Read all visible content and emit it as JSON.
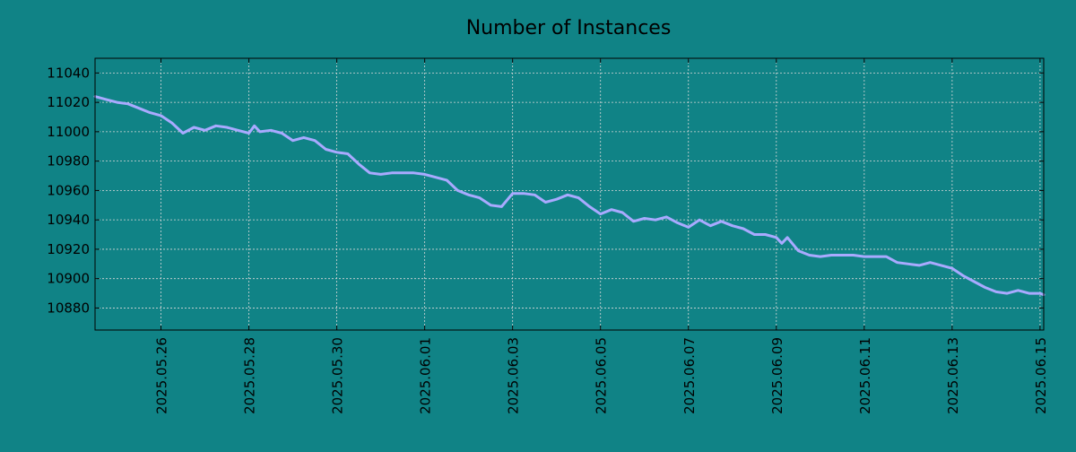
{
  "chart_data": {
    "type": "line",
    "title": "Number of Instances",
    "xlabel": "",
    "ylabel": "",
    "x_type": "date",
    "xlim": [
      "2025-05-24T12:00",
      "2025-06-15T02:00"
    ],
    "ylim": [
      10865,
      11050
    ],
    "x_ticks": [
      "2025.05.26",
      "2025.05.28",
      "2025.05.30",
      "2025.06.01",
      "2025.06.03",
      "2025.06.05",
      "2025.06.07",
      "2025.06.09",
      "2025.06.11",
      "2025.06.13",
      "2025.06.15"
    ],
    "y_ticks": [
      10880,
      10900,
      10920,
      10940,
      10960,
      10980,
      11000,
      11020,
      11040
    ],
    "grid": true,
    "legend": "none",
    "colors": {
      "background": "#108386",
      "line": "#a9aaff",
      "grid": "#d8d8d8",
      "axis": "#000000"
    },
    "series": [
      {
        "x": [
          "2025-05-24T12:00",
          "2025-05-24T18:00",
          "2025-05-25T00:00",
          "2025-05-25T06:00",
          "2025-05-25T12:00",
          "2025-05-25T18:00",
          "2025-05-26T00:00",
          "2025-05-26T06:00",
          "2025-05-26T12:00",
          "2025-05-26T18:00",
          "2025-05-27T00:00",
          "2025-05-27T06:00",
          "2025-05-27T12:00",
          "2025-05-27T18:00",
          "2025-05-28T00:00",
          "2025-05-28T03:00",
          "2025-05-28T06:00",
          "2025-05-28T12:00",
          "2025-05-28T18:00",
          "2025-05-29T00:00",
          "2025-05-29T06:00",
          "2025-05-29T12:00",
          "2025-05-29T18:00",
          "2025-05-30T00:00",
          "2025-05-30T06:00",
          "2025-05-30T12:00",
          "2025-05-30T18:00",
          "2025-05-31T00:00",
          "2025-05-31T06:00",
          "2025-05-31T12:00",
          "2025-05-31T18:00",
          "2025-06-01T00:00",
          "2025-06-01T06:00",
          "2025-06-01T12:00",
          "2025-06-01T18:00",
          "2025-06-02T00:00",
          "2025-06-02T06:00",
          "2025-06-02T12:00",
          "2025-06-02T18:00",
          "2025-06-03T00:00",
          "2025-06-03T06:00",
          "2025-06-03T12:00",
          "2025-06-03T18:00",
          "2025-06-04T00:00",
          "2025-06-04T06:00",
          "2025-06-04T12:00",
          "2025-06-04T18:00",
          "2025-06-05T00:00",
          "2025-06-05T06:00",
          "2025-06-05T12:00",
          "2025-06-05T18:00",
          "2025-06-06T00:00",
          "2025-06-06T06:00",
          "2025-06-06T12:00",
          "2025-06-06T18:00",
          "2025-06-07T00:00",
          "2025-06-07T06:00",
          "2025-06-07T12:00",
          "2025-06-07T18:00",
          "2025-06-08T00:00",
          "2025-06-08T06:00",
          "2025-06-08T12:00",
          "2025-06-08T18:00",
          "2025-06-09T00:00",
          "2025-06-09T03:00",
          "2025-06-09T06:00",
          "2025-06-09T12:00",
          "2025-06-09T18:00",
          "2025-06-10T00:00",
          "2025-06-10T06:00",
          "2025-06-10T12:00",
          "2025-06-10T18:00",
          "2025-06-11T00:00",
          "2025-06-11T06:00",
          "2025-06-11T12:00",
          "2025-06-11T18:00",
          "2025-06-12T00:00",
          "2025-06-12T06:00",
          "2025-06-12T12:00",
          "2025-06-12T18:00",
          "2025-06-13T00:00",
          "2025-06-13T06:00",
          "2025-06-13T12:00",
          "2025-06-13T18:00",
          "2025-06-14T00:00",
          "2025-06-14T06:00",
          "2025-06-14T12:00",
          "2025-06-14T18:00",
          "2025-06-15T00:00",
          "2025-06-15T02:00"
        ],
        "y": [
          11024,
          11022,
          11020,
          11019,
          11016,
          11013,
          11011,
          11006,
          10999,
          11003,
          11001,
          11004,
          11003,
          11001,
          10999,
          11004,
          11000,
          11001,
          10999,
          10994,
          10996,
          10994,
          10988,
          10986,
          10985,
          10978,
          10972,
          10971,
          10972,
          10972,
          10972,
          10971,
          10969,
          10967,
          10960,
          10957,
          10955,
          10950,
          10949,
          10958,
          10958,
          10957,
          10952,
          10954,
          10957,
          10955,
          10949,
          10944,
          10947,
          10945,
          10939,
          10941,
          10940,
          10942,
          10938,
          10935,
          10940,
          10936,
          10939,
          10936,
          10934,
          10930,
          10930,
          10928,
          10924,
          10928,
          10919,
          10916,
          10915,
          10916,
          10916,
          10916,
          10915,
          10915,
          10915,
          10911,
          10910,
          10909,
          10911,
          10909,
          10907,
          10902,
          10898,
          10894,
          10891,
          10890,
          10892,
          10890,
          10890,
          10889
        ]
      }
    ]
  }
}
